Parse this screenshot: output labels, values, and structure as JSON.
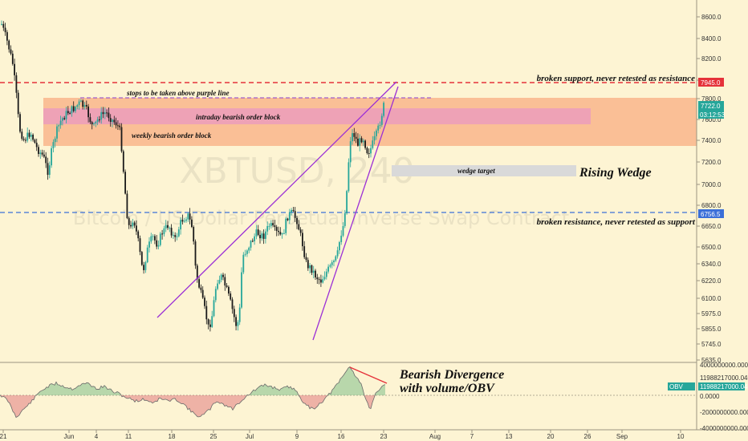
{
  "chart_data": {
    "type": "candlestick",
    "watermark": {
      "symbol": "XBTUSD, 240",
      "description": "Bitcoin / US Dollar Perpetual Inverse Swap Contract"
    },
    "price_axis": {
      "ticks": [
        "8600.0",
        "8400.0",
        "8200.0",
        "8000.0",
        "7800.0",
        "7600.0",
        "7400.0",
        "7200.0",
        "7000.0",
        "6800.0",
        "6650.0",
        "6500.0",
        "6340.0",
        "6220.0",
        "6100.0",
        "5975.0",
        "5855.0",
        "5745.0",
        "5635.0"
      ],
      "labels": {
        "current_price": "7722.0",
        "countdown": "03:12:53",
        "support_level": "7945.0",
        "resistance_level": "6756.5"
      }
    },
    "time_axis": {
      "ticks": [
        "21",
        "Jun",
        "4",
        "11",
        "18",
        "25",
        "Jul",
        "9",
        "16",
        "23",
        "Aug",
        "7",
        "13",
        "20",
        "26",
        "Sep",
        "10"
      ]
    },
    "candles_summary": {
      "start_close": 8580,
      "low": 5755,
      "end_close": 7722
    },
    "levels": [
      {
        "name": "broken-support",
        "value": 7945,
        "color": "#e5323a"
      },
      {
        "name": "broken-resistance",
        "value": 6756.5,
        "color": "#3b6fd8"
      }
    ],
    "zones": [
      {
        "name": "weekly-bearish-order-block",
        "label": "weekly bearish order block",
        "from": 7330,
        "to": 7800,
        "color": "#f9b98f"
      },
      {
        "name": "intraday-bearish-order-block",
        "label": "intraday bearish order block",
        "from": 7530,
        "to": 7650,
        "color": "#ec9fb9"
      },
      {
        "name": "wedge-target",
        "label": "wedge target",
        "from": 7110,
        "to": 7220,
        "color": "#d9d9d9"
      }
    ],
    "annotations": {
      "stops": "stops to be taken above purple line",
      "support": "broken support, never retested as resistance",
      "resistance": "broken resistance, never retested as support",
      "wedge": "Rising Wedge",
      "divergence_1": "Bearish Divergence",
      "divergence_2": "with volume/OBV"
    },
    "obv": {
      "name": "OBV",
      "ticks": [
        "4000000000.0000",
        "2000000000.0000",
        "0.0000",
        "-2000000000.0000",
        "-4000000000.0000"
      ],
      "value_label": "11988217000.0468",
      "label_badge": "OBV",
      "ylim": [
        -4000000000,
        4000000000
      ]
    },
    "colors": {
      "up": "#26a69a",
      "down": "#1a1a1a",
      "wedge": "#9b2fd6",
      "obv_line": "#6a6a6a",
      "obv_neg": "#e0707a",
      "obv_pos": "#7fbf8a",
      "price_badge": "#26a69a"
    }
  }
}
